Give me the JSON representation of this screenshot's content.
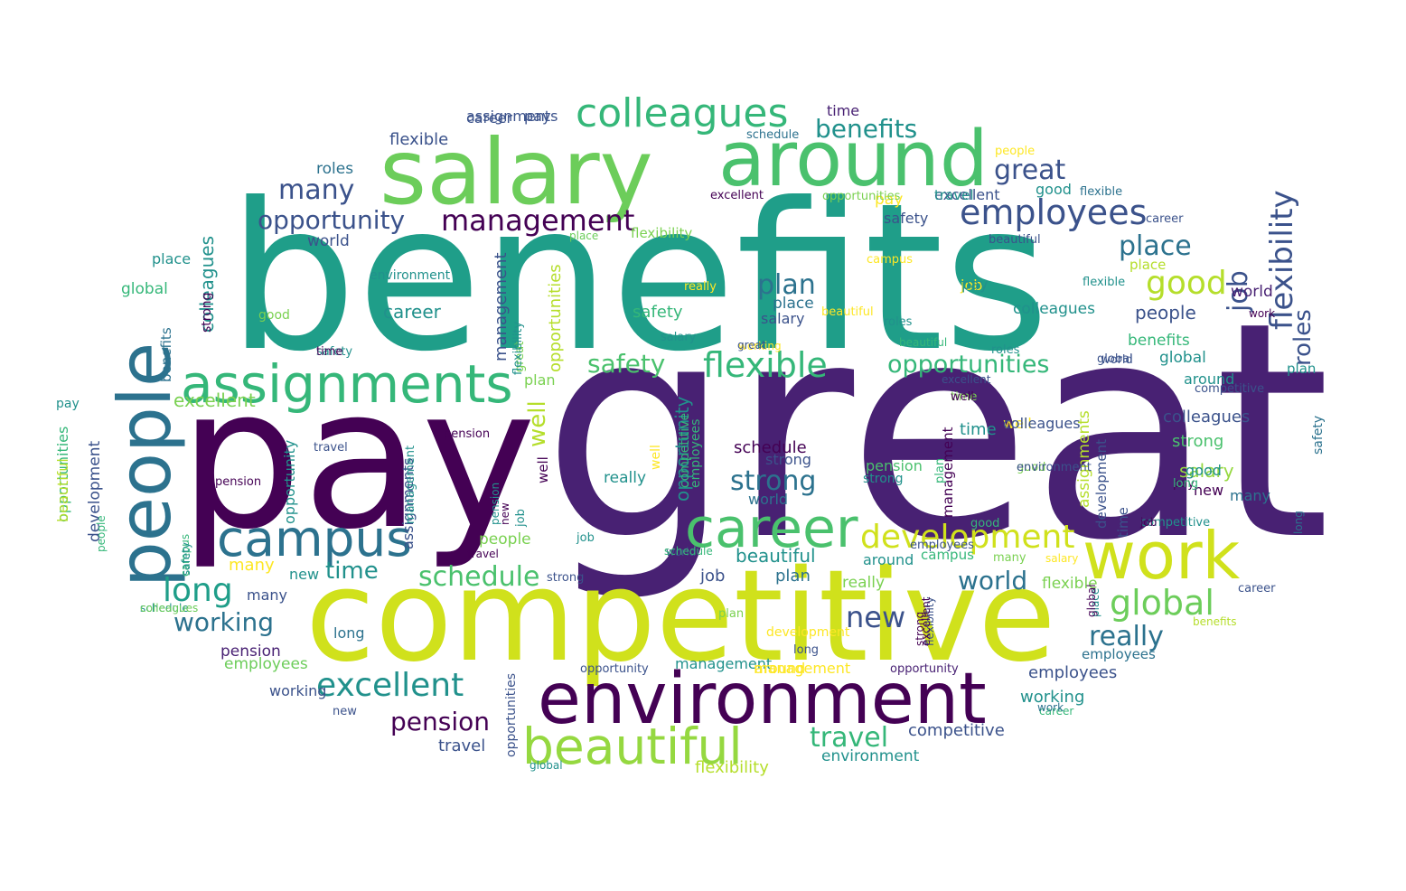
{
  "words": [
    {
      "text": "great",
      "color": "#482173"
    },
    {
      "text": "benefits",
      "color": "#1f9e89"
    },
    {
      "text": "pay",
      "color": "#440154"
    },
    {
      "text": "competitive",
      "color": "#d0e11c"
    },
    {
      "text": "salary",
      "color": "#6ccd5a"
    },
    {
      "text": "around",
      "color": "#4ac16d"
    },
    {
      "text": "environment",
      "color": "#440154"
    },
    {
      "text": "people",
      "color": "#2c728e"
    },
    {
      "text": "work",
      "color": "#d0e11c"
    },
    {
      "text": "assignments",
      "color": "#35b779"
    },
    {
      "text": "career",
      "color": "#4ac16d"
    },
    {
      "text": "campus",
      "color": "#2c728e"
    },
    {
      "text": "beautiful",
      "color": "#95d840"
    },
    {
      "text": "colleagues",
      "color": "#35b779"
    },
    {
      "text": "employees",
      "color": "#3b528b"
    },
    {
      "text": "development",
      "color": "#d0e11c"
    },
    {
      "text": "flexible",
      "color": "#35b779"
    },
    {
      "text": "excellent",
      "color": "#21918c"
    },
    {
      "text": "global",
      "color": "#6ccd5a"
    },
    {
      "text": "management",
      "color": "#440154"
    },
    {
      "text": "flexibility",
      "color": "#3b528b"
    },
    {
      "text": "opportunity",
      "color": "#3b528b"
    },
    {
      "text": "opportunities",
      "color": "#35b779"
    },
    {
      "text": "long",
      "color": "#1f9e89"
    },
    {
      "text": "schedule",
      "color": "#4ac16d"
    },
    {
      "text": "working",
      "color": "#2c728e"
    },
    {
      "text": "pension",
      "color": "#440154"
    },
    {
      "text": "travel",
      "color": "#35b779"
    },
    {
      "text": "really",
      "color": "#2c728e"
    },
    {
      "text": "new",
      "color": "#3b528b"
    },
    {
      "text": "job",
      "color": "#3b528b"
    },
    {
      "text": "good",
      "color": "#b5de2b"
    },
    {
      "text": "place",
      "color": "#2c728e"
    },
    {
      "text": "plan",
      "color": "#2c728e"
    },
    {
      "text": "strong",
      "color": "#2c728e"
    },
    {
      "text": "safety",
      "color": "#4ac16d"
    },
    {
      "text": "time",
      "color": "#21918c"
    },
    {
      "text": "world",
      "color": "#2c728e"
    },
    {
      "text": "many",
      "color": "#3b528b"
    },
    {
      "text": "roles",
      "color": "#3b528b"
    },
    {
      "text": "benefits",
      "color": "#21918c"
    },
    {
      "text": "great",
      "color": "#3b528b"
    },
    {
      "text": "well",
      "color": "#b5de2b"
    },
    {
      "text": "people",
      "color": "#3b528b"
    },
    {
      "text": "colleagues",
      "color": "#3b528b"
    },
    {
      "text": "management",
      "color": "#3b528b"
    },
    {
      "text": "opportunity",
      "color": "#21918c"
    },
    {
      "text": "career",
      "color": "#21918c"
    },
    {
      "text": "schedule",
      "color": "#440154"
    },
    {
      "text": "strong",
      "color": "#4ac16d"
    },
    {
      "text": "salary",
      "color": "#95d840"
    },
    {
      "text": "pension",
      "color": "#4ac16d"
    },
    {
      "text": "employees",
      "color": "#3b528b"
    },
    {
      "text": "excellent",
      "color": "#7ad151"
    },
    {
      "text": "travel",
      "color": "#3b528b"
    },
    {
      "text": "competitive",
      "color": "#3b528b"
    },
    {
      "text": "environment",
      "color": "#21918c"
    },
    {
      "text": "flexibility",
      "color": "#b5de2b"
    },
    {
      "text": "working",
      "color": "#21918c"
    },
    {
      "text": "safety",
      "color": "#35b779"
    },
    {
      "text": "colleagues",
      "color": "#21918c"
    },
    {
      "text": "many",
      "color": "#fde725"
    },
    {
      "text": "around",
      "color": "#21918c"
    },
    {
      "text": "plan",
      "color": "#2c728e"
    },
    {
      "text": "global",
      "color": "#21918c"
    },
    {
      "text": "job",
      "color": "#3b528b"
    },
    {
      "text": "place",
      "color": "#2c728e"
    },
    {
      "text": "time",
      "color": "#21918c"
    },
    {
      "text": "world",
      "color": "#2c728e"
    },
    {
      "text": "flexible",
      "color": "#7ad151"
    },
    {
      "text": "roles",
      "color": "#2c728e"
    },
    {
      "text": "benefits",
      "color": "#35b779"
    },
    {
      "text": "well",
      "color": "#fde725"
    },
    {
      "text": "beautiful",
      "color": "#21918c"
    },
    {
      "text": "people",
      "color": "#7ad151"
    },
    {
      "text": "employees",
      "color": "#6ccd5a"
    },
    {
      "text": "excellent",
      "color": "#3b528b"
    },
    {
      "text": "new",
      "color": "#21918c"
    },
    {
      "text": "really",
      "color": "#7ad151"
    },
    {
      "text": "long",
      "color": "#2c728e"
    },
    {
      "text": "pension",
      "color": "#482173"
    },
    {
      "text": "campus",
      "color": "#35b779"
    },
    {
      "text": "flexible",
      "color": "#3b528b"
    },
    {
      "text": "opportunities",
      "color": "#b5de2b"
    },
    {
      "text": "development",
      "color": "#3b528b"
    },
    {
      "text": "career",
      "color": "#3b528b"
    },
    {
      "text": "world",
      "color": "#3b528b"
    },
    {
      "text": "good",
      "color": "#21918c"
    },
    {
      "text": "place",
      "color": "#21918c"
    },
    {
      "text": "assignments",
      "color": "#b5de2b"
    },
    {
      "text": "management",
      "color": "#440154"
    },
    {
      "text": "opportunity",
      "color": "#21918c"
    },
    {
      "text": "global",
      "color": "#35b779"
    },
    {
      "text": "safety",
      "color": "#3b528b"
    },
    {
      "text": "time",
      "color": "#482173"
    },
    {
      "text": "pay",
      "color": "#fde725"
    },
    {
      "text": "job",
      "color": "#fde725"
    },
    {
      "text": "excellent",
      "color": "#440154"
    },
    {
      "text": "salary",
      "color": "#3b528b"
    },
    {
      "text": "strong",
      "color": "#3b528b"
    },
    {
      "text": "plan",
      "color": "#7ad151"
    },
    {
      "text": "new",
      "color": "#440154"
    },
    {
      "text": "around",
      "color": "#21918c"
    },
    {
      "text": "campus",
      "color": "#fde725"
    },
    {
      "text": "assignments",
      "color": "#3b528b"
    },
    {
      "text": "travel",
      "color": "#3b528b"
    },
    {
      "text": "colleagues",
      "color": "#21918c"
    },
    {
      "text": "employees",
      "color": "#2c728e"
    },
    {
      "text": "pay",
      "color": "#3b528b"
    },
    {
      "text": "career",
      "color": "#3b528b"
    },
    {
      "text": "competitive",
      "color": "#21918c"
    },
    {
      "text": "flexibility",
      "color": "#3b528b"
    },
    {
      "text": "development",
      "color": "#3b528b"
    },
    {
      "text": "benefits",
      "color": "#2c728e"
    },
    {
      "text": "people",
      "color": "#fde725"
    },
    {
      "text": "good",
      "color": "#7ad151"
    },
    {
      "text": "well",
      "color": "#440154"
    },
    {
      "text": "beautiful",
      "color": "#3b528b"
    },
    {
      "text": "place",
      "color": "#b5de2b"
    },
    {
      "text": "long",
      "color": "#3b528b"
    },
    {
      "text": "plan",
      "color": "#7ad151"
    },
    {
      "text": "schedule",
      "color": "#21918c"
    },
    {
      "text": "safety",
      "color": "#21918c"
    },
    {
      "text": "strong",
      "color": "#3b528b"
    },
    {
      "text": "flexible",
      "color": "#21918c"
    },
    {
      "text": "world",
      "color": "#3b528b"
    },
    {
      "text": "salary",
      "color": "#21918c"
    },
    {
      "text": "global",
      "color": "#3b528b"
    },
    {
      "text": "job",
      "color": "#21918c"
    },
    {
      "text": "really",
      "color": "#fde725"
    },
    {
      "text": "good",
      "color": "#7ad151"
    },
    {
      "text": "time",
      "color": "#7ad151"
    },
    {
      "text": "pay",
      "color": "#21918c"
    },
    {
      "text": "pension",
      "color": "#440154"
    },
    {
      "text": "roles",
      "color": "#21918c"
    },
    {
      "text": "working",
      "color": "#fde725"
    },
    {
      "text": "strong",
      "color": "#440154"
    },
    {
      "text": "management",
      "color": "#21918c"
    },
    {
      "text": "new",
      "color": "#440154"
    },
    {
      "text": "great",
      "color": "#7ad151"
    },
    {
      "text": "opportunities",
      "color": "#7ad151"
    },
    {
      "text": "around",
      "color": "#fde725"
    },
    {
      "text": "beautiful",
      "color": "#35b779"
    },
    {
      "text": "place",
      "color": "#21918c"
    },
    {
      "text": "many",
      "color": "#2c728e"
    },
    {
      "text": "good",
      "color": "#35b779"
    },
    {
      "text": "employees",
      "color": "#35b779"
    },
    {
      "text": "environment",
      "color": "#3b528b"
    },
    {
      "text": "time",
      "color": "#3b528b"
    },
    {
      "text": "opportunities",
      "color": "#3b528b"
    },
    {
      "text": "colleagues",
      "color": "#3b528b"
    },
    {
      "text": "well",
      "color": "#fde725"
    },
    {
      "text": "pay",
      "color": "#440154"
    },
    {
      "text": "long",
      "color": "#35b779"
    },
    {
      "text": "travel",
      "color": "#440154"
    },
    {
      "text": "development",
      "color": "#fde725"
    },
    {
      "text": "campus",
      "color": "#35b779"
    },
    {
      "text": "opportunity",
      "color": "#482173"
    },
    {
      "text": "competitive",
      "color": "#3b528b"
    },
    {
      "text": "excellent",
      "color": "#3b528b"
    },
    {
      "text": "schedule",
      "color": "#35b779"
    },
    {
      "text": "world",
      "color": "#482173"
    },
    {
      "text": "work",
      "color": "#440154"
    },
    {
      "text": "safety",
      "color": "#2c728e"
    },
    {
      "text": "flexibility",
      "color": "#7ad151"
    },
    {
      "text": "career",
      "color": "#35b779"
    },
    {
      "text": "plan",
      "color": "#21918c"
    },
    {
      "text": "roles",
      "color": "#21918c"
    },
    {
      "text": "strong",
      "color": "#21918c"
    },
    {
      "text": "pension",
      "color": "#440154"
    },
    {
      "text": "job",
      "color": "#21918c"
    },
    {
      "text": "global",
      "color": "#440154"
    },
    {
      "text": "many",
      "color": "#3b528b"
    },
    {
      "text": "people",
      "color": "#35b779"
    },
    {
      "text": "management",
      "color": "#fde725"
    },
    {
      "text": "beautiful",
      "color": "#fde725"
    },
    {
      "text": "good",
      "color": "#21918c"
    },
    {
      "text": "salary",
      "color": "#fde725"
    },
    {
      "text": "really",
      "color": "#21918c"
    },
    {
      "text": "working",
      "color": "#3b528b"
    },
    {
      "text": "work",
      "color": "#2c728e"
    },
    {
      "text": "place",
      "color": "#6ccd5a"
    },
    {
      "text": "flexible",
      "color": "#2c728e"
    },
    {
      "text": "benefits",
      "color": "#b5de2b"
    },
    {
      "text": "new",
      "color": "#3b528b"
    },
    {
      "text": "time",
      "color": "#440154"
    },
    {
      "text": "safety",
      "color": "#21918c"
    },
    {
      "text": "assignments",
      "color": "#3b528b"
    },
    {
      "text": "career",
      "color": "#3b528b"
    },
    {
      "text": "long",
      "color": "#2c728e"
    },
    {
      "text": "many",
      "color": "#7ad151"
    },
    {
      "text": "opportunity",
      "color": "#3b528b"
    },
    {
      "text": "well",
      "color": "#440154"
    },
    {
      "text": "pay",
      "color": "#21918c"
    },
    {
      "text": "job",
      "color": "#440154"
    },
    {
      "text": "competitive",
      "color": "#35b779"
    },
    {
      "text": "environment",
      "color": "#21918c"
    },
    {
      "text": "plan",
      "color": "#35b779"
    },
    {
      "text": "pension",
      "color": "#21918c"
    },
    {
      "text": "great",
      "color": "#3b528b"
    },
    {
      "text": "strong",
      "color": "#440154"
    },
    {
      "text": "colleagues",
      "color": "#6ccd5a"
    },
    {
      "text": "schedule",
      "color": "#2c728e"
    },
    {
      "text": "employees",
      "color": "#3b528b"
    },
    {
      "text": "world",
      "color": "#3b528b"
    },
    {
      "text": "global",
      "color": "#21918c"
    },
    {
      "text": "management",
      "color": "#21918c"
    },
    {
      "text": "travel",
      "color": "#21918c"
    },
    {
      "text": "excellent",
      "color": "#440154"
    },
    {
      "text": "flexibility",
      "color": "#21918c"
    },
    {
      "text": "opportunities",
      "color": "#35b779"
    },
    {
      "text": "beautiful",
      "color": "#b5de2b"
    }
  ]
}
